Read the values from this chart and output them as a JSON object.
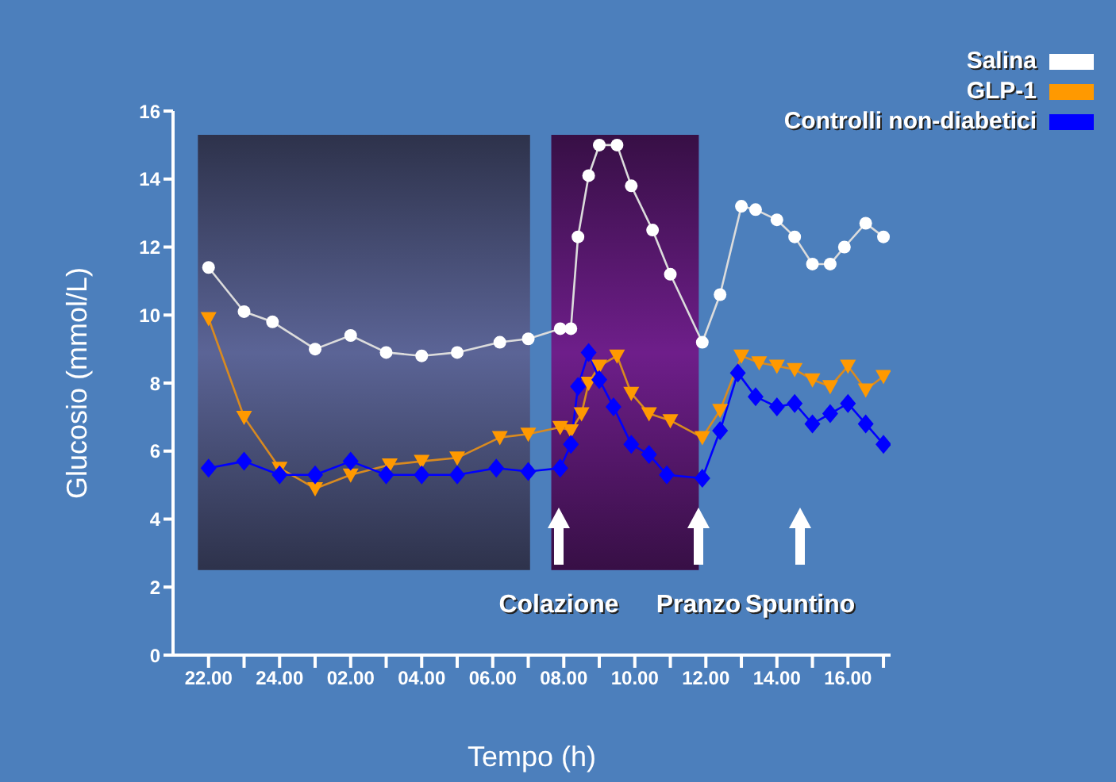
{
  "chart_data": {
    "type": "line",
    "xlabel": "Tempo (h)",
    "ylabel": "Glucosio (mmol/L)",
    "xlim": [
      "2000-01-01T21:00",
      "2000-01-02T17:12"
    ],
    "ylim": [
      0,
      16
    ],
    "yticks": [
      0,
      2,
      4,
      6,
      8,
      10,
      12,
      14,
      16
    ],
    "xticks": [
      {
        "value": "2000-01-01T22:00",
        "label": "22.00"
      },
      {
        "value": "2000-01-01T23:00",
        "label": null
      },
      {
        "value": "2000-01-02T00:00",
        "label": "24.00"
      },
      {
        "value": "2000-01-02T01:00",
        "label": null
      },
      {
        "value": "2000-01-02T02:00",
        "label": "02.00"
      },
      {
        "value": "2000-01-02T03:00",
        "label": null
      },
      {
        "value": "2000-01-02T04:00",
        "label": "04.00"
      },
      {
        "value": "2000-01-02T05:00",
        "label": null
      },
      {
        "value": "2000-01-02T06:00",
        "label": "06.00"
      },
      {
        "value": "2000-01-02T07:00",
        "label": null
      },
      {
        "value": "2000-01-02T08:00",
        "label": "08.00"
      },
      {
        "value": "2000-01-02T09:00",
        "label": null
      },
      {
        "value": "2000-01-02T10:00",
        "label": "10.00"
      },
      {
        "value": "2000-01-02T11:00",
        "label": null
      },
      {
        "value": "2000-01-02T12:00",
        "label": "12.00"
      },
      {
        "value": "2000-01-02T13:00",
        "label": null
      },
      {
        "value": "2000-01-02T14:00",
        "label": "14.00"
      },
      {
        "value": "2000-01-02T15:00",
        "label": null
      },
      {
        "value": "2000-01-02T16:00",
        "label": "16.00"
      },
      {
        "value": "2000-01-02T17:00",
        "label": null
      }
    ],
    "grid": false,
    "legend": "top right",
    "line_style": "solid",
    "series": [
      {
        "name": "Salina",
        "color": "#ffffff",
        "marker": "circle",
        "x": [
          "2000-01-01T22:00",
          "2000-01-01T23:00",
          "2000-01-01T23:48",
          "2000-01-02T01:00",
          "2000-01-02T02:00",
          "2000-01-02T03:00",
          "2000-01-02T04:00",
          "2000-01-02T05:00",
          "2000-01-02T06:12",
          "2000-01-02T07:00",
          "2000-01-02T07:54",
          "2000-01-02T08:12",
          "2000-01-02T08:24",
          "2000-01-02T08:42",
          "2000-01-02T09:00",
          "2000-01-02T09:30",
          "2000-01-02T09:54",
          "2000-01-02T10:30",
          "2000-01-02T11:00",
          "2000-01-02T11:54",
          "2000-01-02T12:24",
          "2000-01-02T13:00",
          "2000-01-02T13:24",
          "2000-01-02T14:00",
          "2000-01-02T14:30",
          "2000-01-02T15:00",
          "2000-01-02T15:30",
          "2000-01-02T15:54",
          "2000-01-02T16:30",
          "2000-01-02T17:00"
        ],
        "values": [
          11.4,
          10.1,
          9.8,
          9.0,
          9.4,
          8.9,
          8.8,
          8.9,
          9.2,
          9.3,
          9.6,
          9.6,
          12.3,
          14.1,
          15.0,
          15.0,
          13.8,
          12.5,
          11.2,
          9.2,
          10.6,
          13.2,
          13.1,
          12.8,
          12.3,
          11.5,
          11.5,
          12.0,
          12.7,
          12.3
        ]
      },
      {
        "name": "GLP-1",
        "color": "#ff9900",
        "marker": "triangle",
        "x": [
          "2000-01-01T22:00",
          "2000-01-01T23:00",
          "2000-01-02T00:00",
          "2000-01-02T01:00",
          "2000-01-02T02:00",
          "2000-01-02T03:06",
          "2000-01-02T04:00",
          "2000-01-02T05:00",
          "2000-01-02T06:12",
          "2000-01-02T07:00",
          "2000-01-02T07:54",
          "2000-01-02T08:12",
          "2000-01-02T08:30",
          "2000-01-02T08:42",
          "2000-01-02T09:00",
          "2000-01-02T09:30",
          "2000-01-02T09:54",
          "2000-01-02T10:24",
          "2000-01-02T11:00",
          "2000-01-02T11:54",
          "2000-01-02T12:24",
          "2000-01-02T13:00",
          "2000-01-02T13:30",
          "2000-01-02T14:00",
          "2000-01-02T14:30",
          "2000-01-02T15:00",
          "2000-01-02T15:30",
          "2000-01-02T16:00",
          "2000-01-02T16:30",
          "2000-01-02T17:00"
        ],
        "values": [
          9.9,
          7.0,
          5.5,
          4.9,
          5.3,
          5.6,
          5.7,
          5.8,
          6.4,
          6.5,
          6.7,
          6.6,
          7.1,
          8.0,
          8.5,
          8.8,
          7.7,
          7.1,
          6.9,
          6.4,
          7.2,
          8.8,
          8.6,
          8.5,
          8.4,
          8.1,
          7.9,
          8.5,
          7.8,
          8.2
        ]
      },
      {
        "name": "Controlli non-diabetici",
        "color": "#0000ff",
        "marker": "diamond",
        "x": [
          "2000-01-01T22:00",
          "2000-01-01T23:00",
          "2000-01-02T00:00",
          "2000-01-02T01:00",
          "2000-01-02T02:00",
          "2000-01-02T03:00",
          "2000-01-02T04:00",
          "2000-01-02T05:00",
          "2000-01-02T06:06",
          "2000-01-02T07:00",
          "2000-01-02T07:54",
          "2000-01-02T08:12",
          "2000-01-02T08:24",
          "2000-01-02T08:42",
          "2000-01-02T09:00",
          "2000-01-02T09:24",
          "2000-01-02T09:54",
          "2000-01-02T10:24",
          "2000-01-02T10:54",
          "2000-01-02T11:54",
          "2000-01-02T12:24",
          "2000-01-02T12:54",
          "2000-01-02T13:24",
          "2000-01-02T14:00",
          "2000-01-02T14:30",
          "2000-01-02T15:00",
          "2000-01-02T15:30",
          "2000-01-02T16:00",
          "2000-01-02T16:30",
          "2000-01-02T17:00"
        ],
        "values": [
          5.5,
          5.7,
          5.3,
          5.3,
          5.7,
          5.3,
          5.3,
          5.3,
          5.5,
          5.4,
          5.5,
          6.2,
          7.9,
          8.9,
          8.1,
          7.3,
          6.2,
          5.9,
          5.3,
          5.2,
          6.6,
          8.3,
          7.6,
          7.3,
          7.4,
          6.8,
          7.1,
          7.4,
          6.8,
          6.2
        ]
      }
    ],
    "bands": [
      {
        "axis": "x",
        "from": "2000-01-01T21:42",
        "to": "2000-01-02T07:03",
        "color": "#5b6496"
      },
      {
        "axis": "x",
        "from": "2000-01-02T07:39",
        "to": "2000-01-02T11:48",
        "color": "#6e1e8a"
      }
    ],
    "annotations": [
      "Colazione",
      "Pranzo",
      "Spuntino"
    ]
  }
}
